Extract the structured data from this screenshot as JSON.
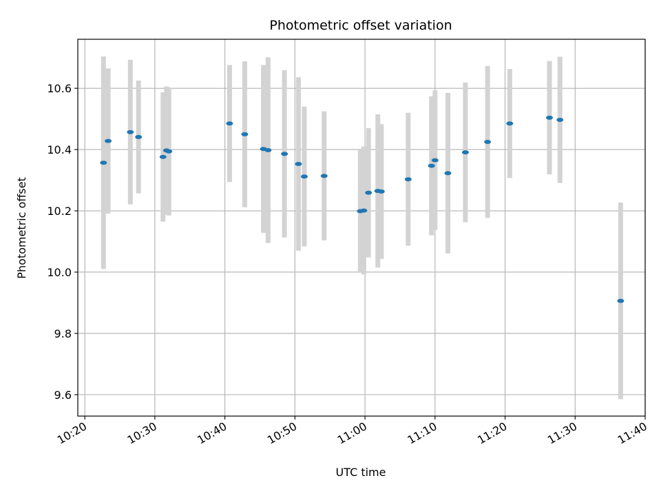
{
  "chart_data": {
    "type": "scatter",
    "title": "Photometric offset variation",
    "xlabel": "UTC time",
    "ylabel": "Photometric offset",
    "grid": true,
    "xlim": [
      "10:19",
      "11:40"
    ],
    "ylim": [
      9.53,
      10.76
    ],
    "x_ticks": [
      "10:20",
      "10:30",
      "10:40",
      "10:50",
      "11:00",
      "11:10",
      "11:20",
      "11:30",
      "11:40"
    ],
    "y_ticks": [
      "9.6",
      "9.8",
      "10.0",
      "10.2",
      "10.4",
      "10.6"
    ],
    "colors": {
      "point": "#1f77b4",
      "errorbar": "#d3d3d3",
      "grid": "#b0b0b0"
    },
    "points": [
      {
        "t": "10:22:40",
        "y": 10.357,
        "err": 0.347
      },
      {
        "t": "10:23:20",
        "y": 10.428,
        "err": 0.237
      },
      {
        "t": "10:26:30",
        "y": 10.457,
        "err": 0.236
      },
      {
        "t": "10:27:40",
        "y": 10.441,
        "err": 0.184
      },
      {
        "t": "10:31:10",
        "y": 10.376,
        "err": 0.211
      },
      {
        "t": "10:31:40",
        "y": 10.397,
        "err": 0.209
      },
      {
        "t": "10:32:00",
        "y": 10.394,
        "err": 0.209
      },
      {
        "t": "10:40:40",
        "y": 10.485,
        "err": 0.191
      },
      {
        "t": "10:42:50",
        "y": 10.45,
        "err": 0.238
      },
      {
        "t": "10:45:30",
        "y": 10.402,
        "err": 0.274
      },
      {
        "t": "10:46:10",
        "y": 10.398,
        "err": 0.303
      },
      {
        "t": "10:48:30",
        "y": 10.386,
        "err": 0.273
      },
      {
        "t": "10:50:30",
        "y": 10.353,
        "err": 0.283
      },
      {
        "t": "10:51:20",
        "y": 10.312,
        "err": 0.228
      },
      {
        "t": "10:54:10",
        "y": 10.314,
        "err": 0.211
      },
      {
        "t": "10:59:20",
        "y": 10.199,
        "err": 0.201
      },
      {
        "t": "10:59:50",
        "y": 10.201,
        "err": 0.209
      },
      {
        "t": "11:00:30",
        "y": 10.259,
        "err": 0.211
      },
      {
        "t": "11:01:50",
        "y": 10.265,
        "err": 0.25
      },
      {
        "t": "11:02:20",
        "y": 10.263,
        "err": 0.22
      },
      {
        "t": "11:06:10",
        "y": 10.303,
        "err": 0.217
      },
      {
        "t": "11:09:30",
        "y": 10.347,
        "err": 0.227
      },
      {
        "t": "11:10:00",
        "y": 10.365,
        "err": 0.228
      },
      {
        "t": "11:11:50",
        "y": 10.323,
        "err": 0.262
      },
      {
        "t": "11:14:20",
        "y": 10.391,
        "err": 0.228
      },
      {
        "t": "11:17:30",
        "y": 10.425,
        "err": 0.248
      },
      {
        "t": "11:20:40",
        "y": 10.485,
        "err": 0.178
      },
      {
        "t": "11:26:20",
        "y": 10.504,
        "err": 0.185
      },
      {
        "t": "11:27:50",
        "y": 10.497,
        "err": 0.206
      },
      {
        "t": "11:36:30",
        "y": 9.906,
        "err": 0.321
      }
    ]
  }
}
